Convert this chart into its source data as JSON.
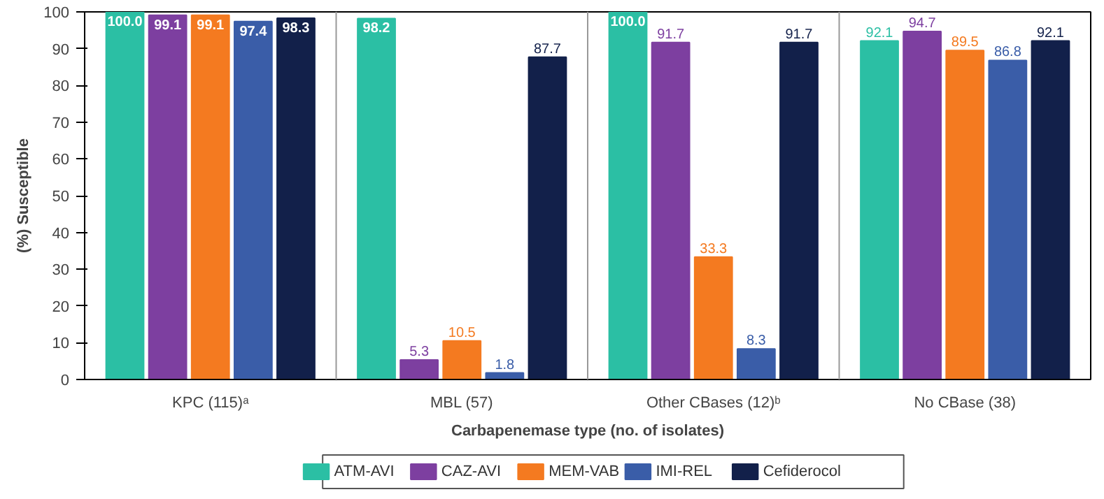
{
  "chart_data": {
    "type": "bar",
    "xlabel": "Carbapenemase type (no. of isolates)",
    "ylabel": "(%) Susceptible",
    "categories": [
      "KPC (115)ᵃ",
      "MBL (57)",
      "Other CBases (12)ᵇ",
      "No CBase (38)"
    ],
    "series": [
      {
        "name": "ATM-AVI",
        "color": "#2bbfa4",
        "values": [
          100.0,
          98.2,
          100.0,
          92.1
        ],
        "value_labels": [
          "100.0",
          "98.2",
          "100.0",
          "92.1"
        ]
      },
      {
        "name": "CAZ-AVI",
        "color": "#7d3fa0",
        "values": [
          99.1,
          5.3,
          91.7,
          94.7
        ],
        "value_labels": [
          "99.1",
          "5.3",
          "91.7",
          "94.7"
        ]
      },
      {
        "name": "MEM-VAB",
        "color": "#f47a20",
        "values": [
          99.1,
          10.5,
          33.3,
          89.5
        ],
        "value_labels": [
          "99.1",
          "10.5",
          "33.3",
          "89.5"
        ]
      },
      {
        "name": "IMI-REL",
        "color": "#3a5da8",
        "values": [
          97.4,
          1.8,
          8.3,
          86.8
        ],
        "value_labels": [
          "97.4",
          "1.8",
          "8.3",
          "86.8"
        ]
      },
      {
        "name": "Cefiderocol",
        "color": "#12204a",
        "values": [
          98.3,
          87.7,
          91.7,
          92.1
        ],
        "value_labels": [
          "98.3",
          "87.7",
          "91.7",
          "92.1"
        ]
      }
    ],
    "ylim": [
      0,
      100
    ],
    "yticks": [
      0,
      10,
      20,
      30,
      40,
      50,
      60,
      70,
      80,
      90,
      100
    ],
    "legend": "bottom"
  }
}
